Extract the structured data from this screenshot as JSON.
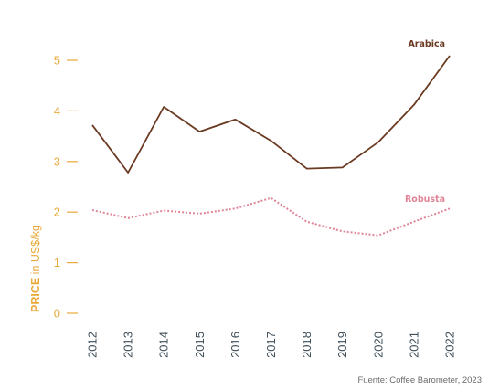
{
  "chart_data": {
    "type": "line",
    "x": [
      "2012",
      "2013",
      "2014",
      "2015",
      "2016",
      "2017",
      "2018",
      "2019",
      "2020",
      "2021",
      "2022"
    ],
    "series": [
      {
        "name": "Arabica",
        "color": "#6b3a22",
        "style": "solid",
        "values": [
          3.72,
          2.78,
          4.08,
          3.59,
          3.83,
          3.41,
          2.86,
          2.88,
          3.38,
          4.12,
          5.09
        ]
      },
      {
        "name": "Robusta",
        "color": "#e08598",
        "style": "dotted",
        "values": [
          2.04,
          1.88,
          2.03,
          1.97,
          2.07,
          2.28,
          1.81,
          1.62,
          1.54,
          1.81,
          2.07
        ]
      }
    ],
    "ylabel_strong": "PRICE",
    "ylabel_rest": " in US$/kg",
    "yticks": [
      0,
      1,
      2,
      3,
      4,
      5
    ],
    "ylim": [
      0,
      5.3
    ],
    "grid": false,
    "axis_color": "#e8a93a"
  },
  "source": "Fuente: Coffee Barometer, 2023"
}
